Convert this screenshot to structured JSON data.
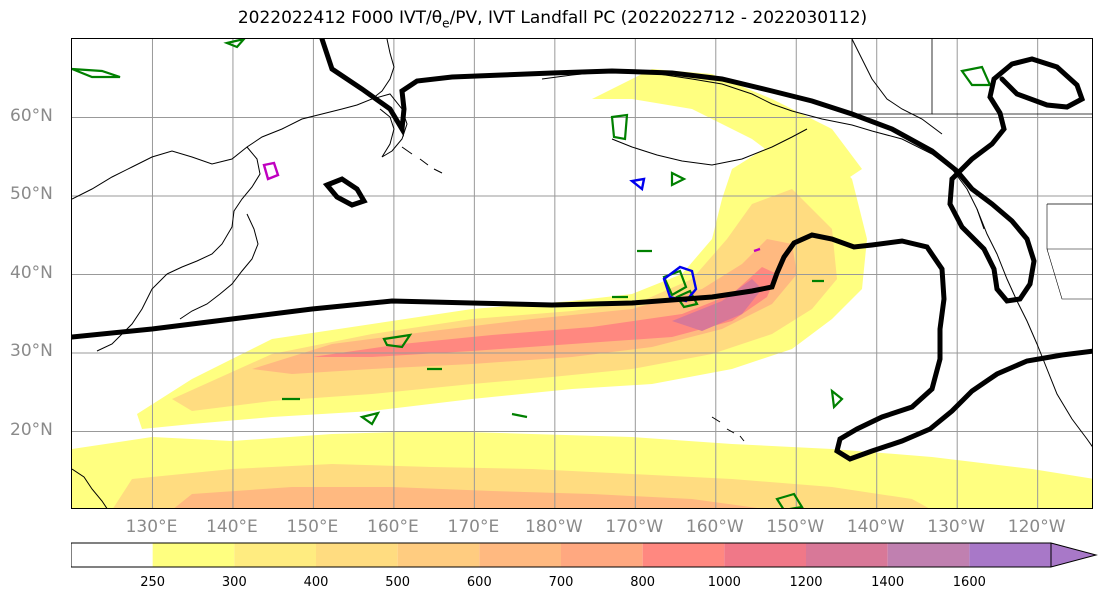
{
  "title": "2022022412 F000 IVT/θe/PV, IVT Landfall PC (2022022712 - 2022030112)",
  "map": {
    "lat_labels": [
      {
        "text": "60°N",
        "lat": 60
      },
      {
        "text": "50°N",
        "lat": 50
      },
      {
        "text": "40°N",
        "lat": 40
      },
      {
        "text": "30°N",
        "lat": 30
      },
      {
        "text": "20°N",
        "lat": 20
      }
    ],
    "lon_labels": [
      {
        "text": "130°E",
        "lon": 130
      },
      {
        "text": "140°E",
        "lon": 140
      },
      {
        "text": "150°E",
        "lon": 150
      },
      {
        "text": "160°E",
        "lon": 160
      },
      {
        "text": "170°E",
        "lon": 170
      },
      {
        "text": "180°W",
        "lon": 180
      },
      {
        "text": "170°W",
        "lon": 190
      },
      {
        "text": "160°W",
        "lon": 200
      },
      {
        "text": "150°W",
        "lon": 210
      },
      {
        "text": "140°W",
        "lon": 220
      },
      {
        "text": "130°W",
        "lon": 230
      },
      {
        "text": "120°W",
        "lon": 240
      }
    ],
    "extent": {
      "lon_min": 120,
      "lon_max": 247,
      "lat_min": 10,
      "lat_max": 70
    },
    "colors": {
      "ivt_contour_black": "#000000",
      "theta_e_green": "#008000",
      "pv_blue": "#0000ee",
      "pv_magenta": "#c000c0",
      "grid": "#999999",
      "coastline": "#000000"
    }
  },
  "colorbar": {
    "levels": [
      "250",
      "300",
      "400",
      "500",
      "600",
      "700",
      "800",
      "1000",
      "1200",
      "1400",
      "1600"
    ],
    "colors": [
      "#ffff80",
      "#ffec80",
      "#ffdc80",
      "#ffcc80",
      "#ffb980",
      "#ffa880",
      "#ff8880",
      "#f07888",
      "#d87898",
      "#c080b0",
      "#a878c8"
    ]
  }
}
